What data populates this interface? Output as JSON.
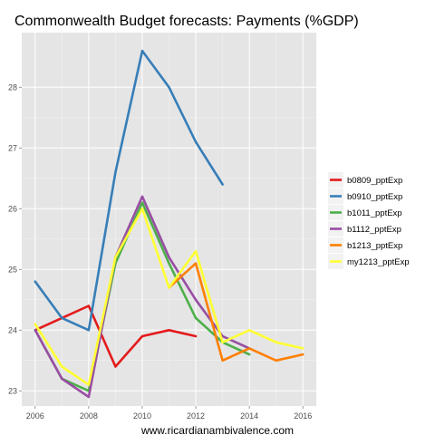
{
  "chart_data": {
    "type": "line",
    "title": "Commonwealth Budget forecasts: Payments (%GDP)",
    "xlabel": "www.ricardianambivalence.com",
    "ylabel": "",
    "xlim": [
      2005.5,
      2016.5
    ],
    "ylim": [
      22.75,
      28.9
    ],
    "x_ticks": [
      2006,
      2008,
      2010,
      2012,
      2014,
      2016
    ],
    "y_ticks": [
      23,
      24,
      25,
      26,
      27,
      28
    ],
    "grid": true,
    "legend_position": "right",
    "series": [
      {
        "name": "b0809_pptExp",
        "color": "#e41a1c",
        "x": [
          2006,
          2007,
          2008,
          2009,
          2010,
          2011,
          2012
        ],
        "y": [
          24.0,
          24.2,
          24.4,
          23.4,
          23.9,
          24.0,
          23.9
        ]
      },
      {
        "name": "b0910_pptExp",
        "color": "#377eb8",
        "x": [
          2006,
          2007,
          2008,
          2009,
          2010,
          2011,
          2012,
          2013
        ],
        "y": [
          24.8,
          24.2,
          24.0,
          26.6,
          28.6,
          28.0,
          27.1,
          26.4
        ]
      },
      {
        "name": "b1011_pptExp",
        "color": "#4daf4a",
        "x": [
          2006,
          2007,
          2008,
          2009,
          2010,
          2011,
          2012,
          2013,
          2014
        ],
        "y": [
          24.0,
          23.2,
          23.0,
          25.1,
          26.1,
          25.1,
          24.2,
          23.8,
          23.6
        ]
      },
      {
        "name": "b1112_pptExp",
        "color": "#984ea3",
        "x": [
          2006,
          2007,
          2008,
          2009,
          2010,
          2011,
          2012,
          2013,
          2014
        ],
        "y": [
          24.0,
          23.2,
          22.9,
          25.2,
          26.2,
          25.2,
          24.5,
          23.9,
          23.7
        ]
      },
      {
        "name": "b1213_pptExp",
        "color": "#ff7f00",
        "x": [
          2011,
          2012,
          2013,
          2014,
          2015,
          2016
        ],
        "y": [
          24.7,
          25.1,
          23.5,
          23.7,
          23.5,
          23.6
        ]
      },
      {
        "name": "my1213_pptExp",
        "color": "#ffff33",
        "x": [
          2006,
          2007,
          2008,
          2009,
          2010,
          2011,
          2012,
          2013,
          2014,
          2015,
          2016
        ],
        "y": [
          24.1,
          23.4,
          23.1,
          25.2,
          26.0,
          24.7,
          25.3,
          23.8,
          24.0,
          23.8,
          23.7
        ]
      }
    ]
  }
}
